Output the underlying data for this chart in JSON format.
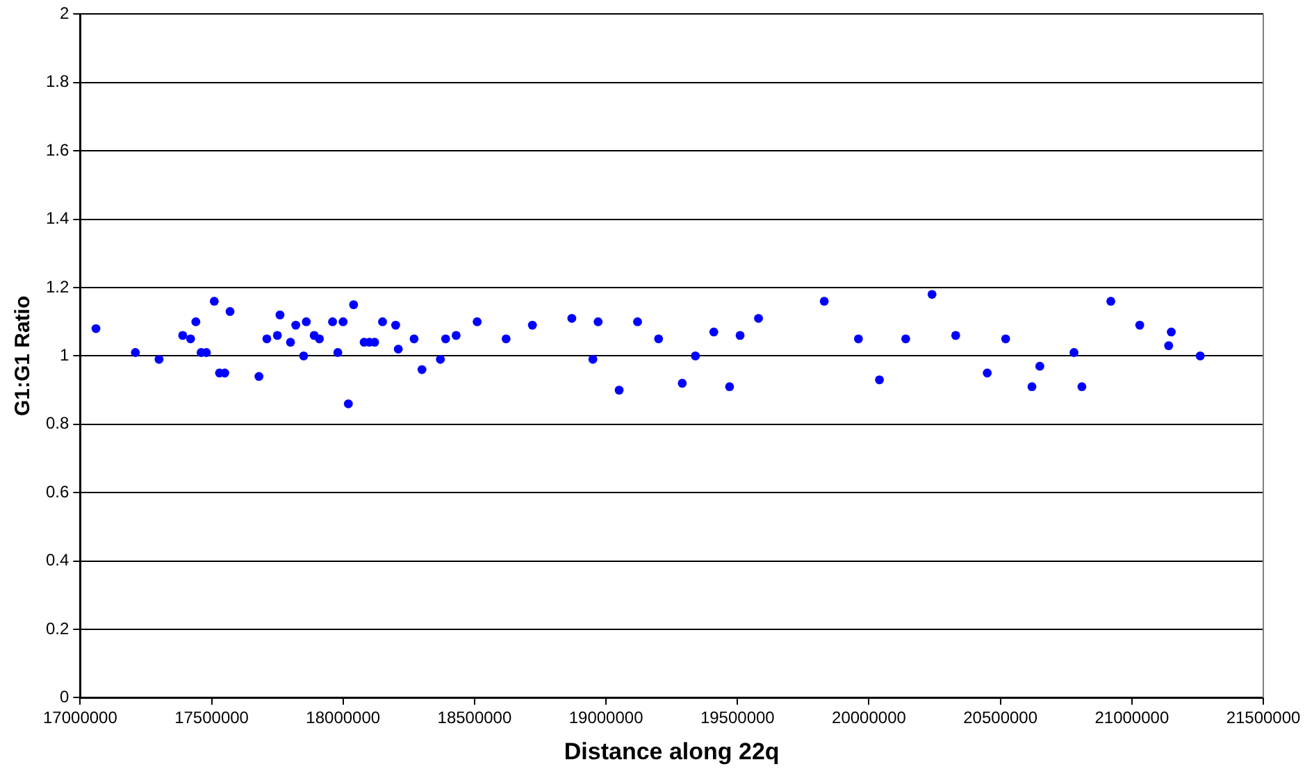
{
  "chart_data": {
    "type": "scatter",
    "xlabel": "Distance along 22q",
    "ylabel": "G1:G1 Ratio",
    "x": [
      17060000,
      17210000,
      17300000,
      17390000,
      17420000,
      17440000,
      17460000,
      17480000,
      17510000,
      17530000,
      17550000,
      17570000,
      17680000,
      17710000,
      17750000,
      17760000,
      17800000,
      17820000,
      17850000,
      17860000,
      17890000,
      17910000,
      17960000,
      17980000,
      18000000,
      18020000,
      18040000,
      18080000,
      18100000,
      18120000,
      18150000,
      18200000,
      18210000,
      18270000,
      18300000,
      18370000,
      18390000,
      18430000,
      18510000,
      18620000,
      18720000,
      18870000,
      18950000,
      18970000,
      19050000,
      19120000,
      19200000,
      19290000,
      19340000,
      19410000,
      19470000,
      19510000,
      19580000,
      19830000,
      19960000,
      20040000,
      20140000,
      20240000,
      20330000,
      20450000,
      20520000,
      20620000,
      20650000,
      20780000,
      20810000,
      20920000,
      21030000,
      21140000,
      21150000,
      21260000
    ],
    "series": [
      {
        "color": "#0000ff",
        "values": [
          1.08,
          1.01,
          0.99,
          1.06,
          1.05,
          1.1,
          1.01,
          1.01,
          1.16,
          0.95,
          0.95,
          1.13,
          0.94,
          1.05,
          1.06,
          1.12,
          1.04,
          1.09,
          1.0,
          1.1,
          1.06,
          1.05,
          1.1,
          1.01,
          1.1,
          0.86,
          1.15,
          1.04,
          1.04,
          1.04,
          1.1,
          1.09,
          1.02,
          1.05,
          0.96,
          0.99,
          1.05,
          1.06,
          1.1,
          1.05,
          1.09,
          1.11,
          0.99,
          1.1,
          0.9,
          1.1,
          1.05,
          0.92,
          1.0,
          1.07,
          0.91,
          1.06,
          1.11,
          1.16,
          1.05,
          0.93,
          1.05,
          1.18,
          1.06,
          0.95,
          1.05,
          0.91,
          0.97,
          1.01,
          0.91,
          1.16,
          1.09,
          1.03,
          1.07,
          1.0
        ]
      }
    ],
    "xlim": [
      17000000,
      21500000
    ],
    "xticks": [
      17000000,
      17500000,
      18000000,
      18500000,
      19000000,
      19500000,
      20000000,
      20500000,
      21000000,
      21500000
    ],
    "ylim": [
      0,
      2
    ],
    "yticks": [
      0,
      0.2,
      0.4,
      0.6,
      0.8,
      1,
      1.2,
      1.4,
      1.6,
      1.8,
      2
    ],
    "grid": "y",
    "legend": false,
    "marker": "circle"
  }
}
